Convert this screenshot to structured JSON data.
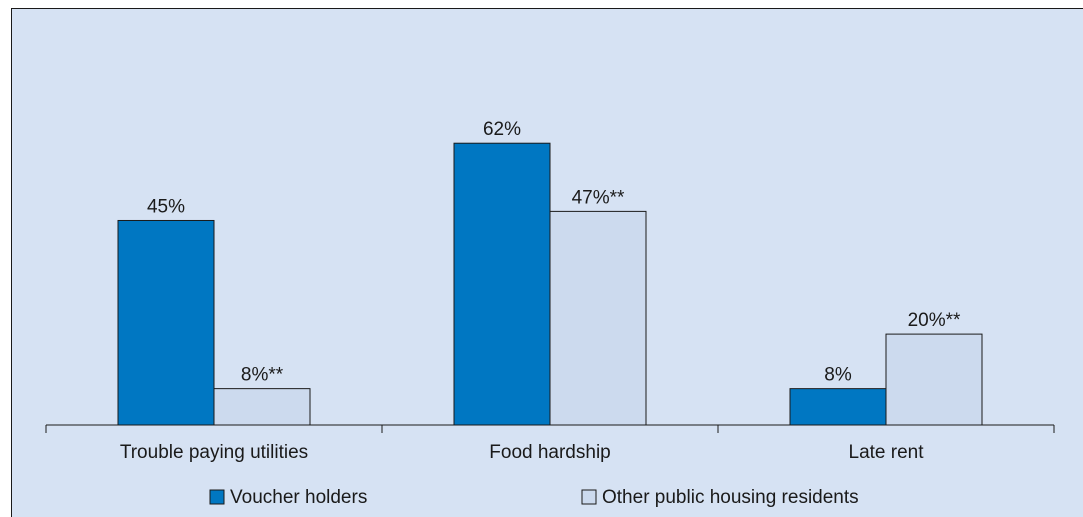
{
  "chart_data": {
    "type": "bar",
    "categories": [
      "Trouble paying utilities",
      "Food hardship",
      "Late rent"
    ],
    "series": [
      {
        "name": "Voucher holders",
        "values": [
          45,
          62,
          8
        ],
        "labels": [
          "45%",
          "62%",
          "8%"
        ],
        "color": "#0077c2"
      },
      {
        "name": "Other public housing residents",
        "values": [
          8,
          47,
          20
        ],
        "labels": [
          "8%**",
          "47%**",
          "20%**"
        ],
        "color": "#ccdaee"
      }
    ],
    "ylim": [
      0,
      70
    ],
    "grid": false,
    "legend_position": "bottom"
  }
}
